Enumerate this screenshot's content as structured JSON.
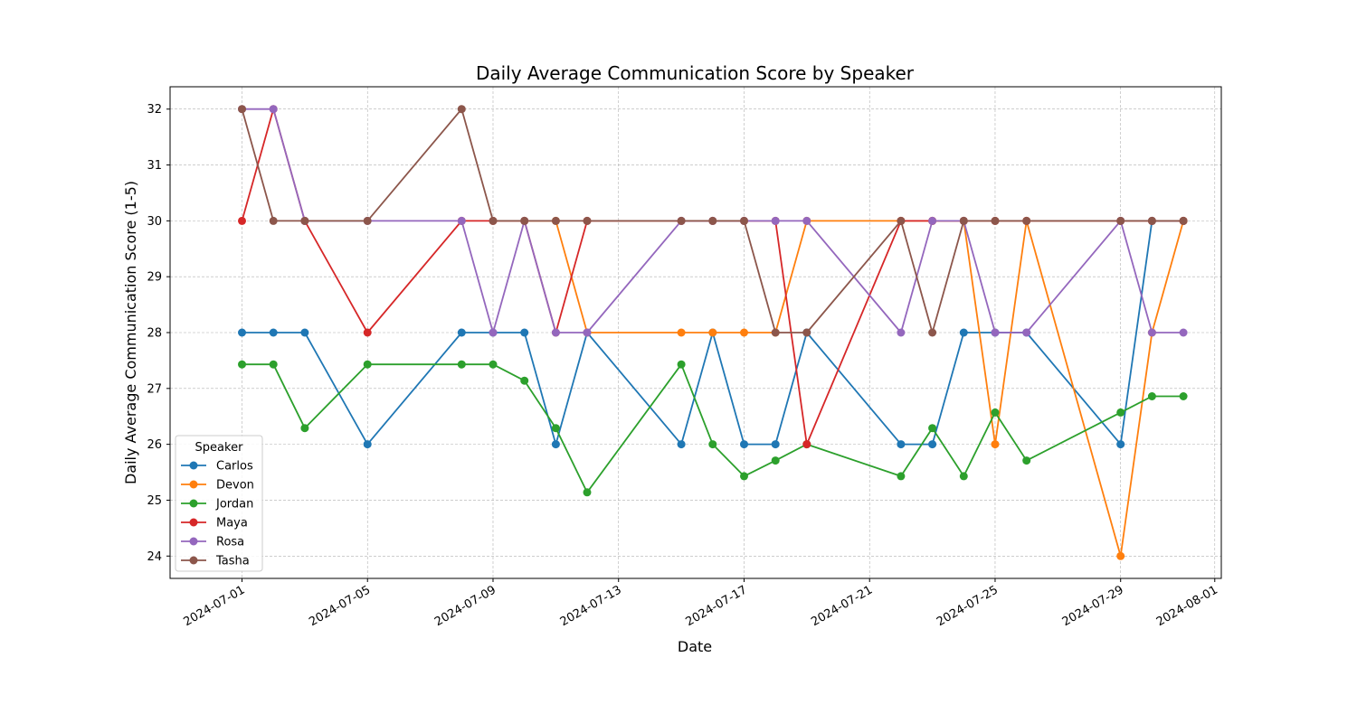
{
  "chart_data": {
    "type": "line",
    "title": "Daily Average Communication Score by Speaker",
    "xlabel": "Date",
    "ylabel": "Daily Average Communication Score (1-5)",
    "x_ticks": [
      "2024-07-01",
      "2024-07-05",
      "2024-07-09",
      "2024-07-13",
      "2024-07-17",
      "2024-07-21",
      "2024-07-25",
      "2024-07-29",
      "2024-08-01"
    ],
    "y_ticks": [
      24,
      25,
      26,
      27,
      28,
      29,
      30,
      31,
      32
    ],
    "xlim": [
      "2024-06-28T17:00",
      "2024-08-01T05:00"
    ],
    "ylim": [
      23.6,
      32.4
    ],
    "grid": true,
    "legend": {
      "title": "Speaker",
      "position": "lower-left"
    },
    "series": [
      {
        "name": "Carlos",
        "color": "#1f77b4",
        "points": [
          [
            "2024-07-01",
            28
          ],
          [
            "2024-07-02",
            28
          ],
          [
            "2024-07-03",
            28
          ],
          [
            "2024-07-05",
            26
          ],
          [
            "2024-07-08",
            28
          ],
          [
            "2024-07-09",
            28
          ],
          [
            "2024-07-10",
            28
          ],
          [
            "2024-07-11",
            26
          ],
          [
            "2024-07-12",
            28
          ],
          [
            "2024-07-15",
            26
          ],
          [
            "2024-07-16",
            28
          ],
          [
            "2024-07-17",
            26
          ],
          [
            "2024-07-18",
            26
          ],
          [
            "2024-07-19",
            28
          ],
          [
            "2024-07-22",
            26
          ],
          [
            "2024-07-23",
            26
          ],
          [
            "2024-07-24",
            28
          ],
          [
            "2024-07-25",
            28
          ],
          [
            "2024-07-26",
            28
          ],
          [
            "2024-07-29",
            26
          ],
          [
            "2024-07-30",
            30
          ],
          [
            "2024-07-31",
            30
          ]
        ]
      },
      {
        "name": "Devon",
        "color": "#ff7f0e",
        "points": [
          [
            "2024-07-10",
            30
          ],
          [
            "2024-07-11",
            30
          ],
          [
            "2024-07-12",
            28
          ],
          [
            "2024-07-15",
            28
          ],
          [
            "2024-07-16",
            28
          ],
          [
            "2024-07-17",
            28
          ],
          [
            "2024-07-18",
            28
          ],
          [
            "2024-07-19",
            30
          ],
          [
            "2024-07-22",
            30
          ],
          [
            "2024-07-23",
            30
          ],
          [
            "2024-07-24",
            30
          ],
          [
            "2024-07-25",
            26
          ],
          [
            "2024-07-26",
            30
          ],
          [
            "2024-07-29",
            24
          ],
          [
            "2024-07-30",
            28
          ],
          [
            "2024-07-31",
            30
          ]
        ]
      },
      {
        "name": "Jordan",
        "color": "#2ca02c",
        "points": [
          [
            "2024-07-01",
            27.43
          ],
          [
            "2024-07-02",
            27.43
          ],
          [
            "2024-07-03",
            26.29
          ],
          [
            "2024-07-05",
            27.43
          ],
          [
            "2024-07-08",
            27.43
          ],
          [
            "2024-07-09",
            27.43
          ],
          [
            "2024-07-10",
            27.14
          ],
          [
            "2024-07-11",
            26.29
          ],
          [
            "2024-07-12",
            25.14
          ],
          [
            "2024-07-15",
            27.43
          ],
          [
            "2024-07-16",
            26
          ],
          [
            "2024-07-17",
            25.43
          ],
          [
            "2024-07-18",
            25.71
          ],
          [
            "2024-07-19",
            26
          ],
          [
            "2024-07-22",
            25.43
          ],
          [
            "2024-07-23",
            26.29
          ],
          [
            "2024-07-24",
            25.43
          ],
          [
            "2024-07-25",
            26.57
          ],
          [
            "2024-07-26",
            25.71
          ],
          [
            "2024-07-29",
            26.57
          ],
          [
            "2024-07-30",
            26.86
          ],
          [
            "2024-07-31",
            26.86
          ]
        ]
      },
      {
        "name": "Maya",
        "color": "#d62728",
        "points": [
          [
            "2024-07-01",
            30
          ],
          [
            "2024-07-02",
            32
          ],
          [
            "2024-07-03",
            30
          ],
          [
            "2024-07-05",
            28
          ],
          [
            "2024-07-08",
            30
          ],
          [
            "2024-07-09",
            30
          ],
          [
            "2024-07-10",
            30
          ],
          [
            "2024-07-11",
            28
          ],
          [
            "2024-07-12",
            30
          ],
          [
            "2024-07-15",
            30
          ],
          [
            "2024-07-16",
            30
          ],
          [
            "2024-07-17",
            30
          ],
          [
            "2024-07-18",
            30
          ],
          [
            "2024-07-19",
            26
          ],
          [
            "2024-07-22",
            30
          ],
          [
            "2024-07-23",
            30
          ],
          [
            "2024-07-24",
            30
          ],
          [
            "2024-07-25",
            30
          ],
          [
            "2024-07-26",
            30
          ],
          [
            "2024-07-29",
            30
          ],
          [
            "2024-07-30",
            30
          ],
          [
            "2024-07-31",
            30
          ]
        ]
      },
      {
        "name": "Rosa",
        "color": "#9467bd",
        "points": [
          [
            "2024-07-01",
            32
          ],
          [
            "2024-07-02",
            32
          ],
          [
            "2024-07-03",
            30
          ],
          [
            "2024-07-05",
            30
          ],
          [
            "2024-07-08",
            30
          ],
          [
            "2024-07-09",
            28
          ],
          [
            "2024-07-10",
            30
          ],
          [
            "2024-07-11",
            28
          ],
          [
            "2024-07-12",
            28
          ],
          [
            "2024-07-15",
            30
          ],
          [
            "2024-07-16",
            30
          ],
          [
            "2024-07-17",
            30
          ],
          [
            "2024-07-18",
            30
          ],
          [
            "2024-07-19",
            30
          ],
          [
            "2024-07-22",
            28
          ],
          [
            "2024-07-23",
            30
          ],
          [
            "2024-07-24",
            30
          ],
          [
            "2024-07-25",
            28
          ],
          [
            "2024-07-26",
            28
          ],
          [
            "2024-07-29",
            30
          ],
          [
            "2024-07-30",
            28
          ],
          [
            "2024-07-31",
            28
          ]
        ]
      },
      {
        "name": "Tasha",
        "color": "#8c564b",
        "points": [
          [
            "2024-07-01",
            32
          ],
          [
            "2024-07-02",
            30
          ],
          [
            "2024-07-03",
            30
          ],
          [
            "2024-07-05",
            30
          ],
          [
            "2024-07-08",
            32
          ],
          [
            "2024-07-09",
            30
          ],
          [
            "2024-07-10",
            30
          ],
          [
            "2024-07-11",
            30
          ],
          [
            "2024-07-12",
            30
          ],
          [
            "2024-07-15",
            30
          ],
          [
            "2024-07-16",
            30
          ],
          [
            "2024-07-17",
            30
          ],
          [
            "2024-07-18",
            28
          ],
          [
            "2024-07-19",
            28
          ],
          [
            "2024-07-22",
            30
          ],
          [
            "2024-07-23",
            28
          ],
          [
            "2024-07-24",
            30
          ],
          [
            "2024-07-25",
            30
          ],
          [
            "2024-07-26",
            30
          ],
          [
            "2024-07-29",
            30
          ],
          [
            "2024-07-30",
            30
          ],
          [
            "2024-07-31",
            30
          ]
        ]
      }
    ]
  }
}
